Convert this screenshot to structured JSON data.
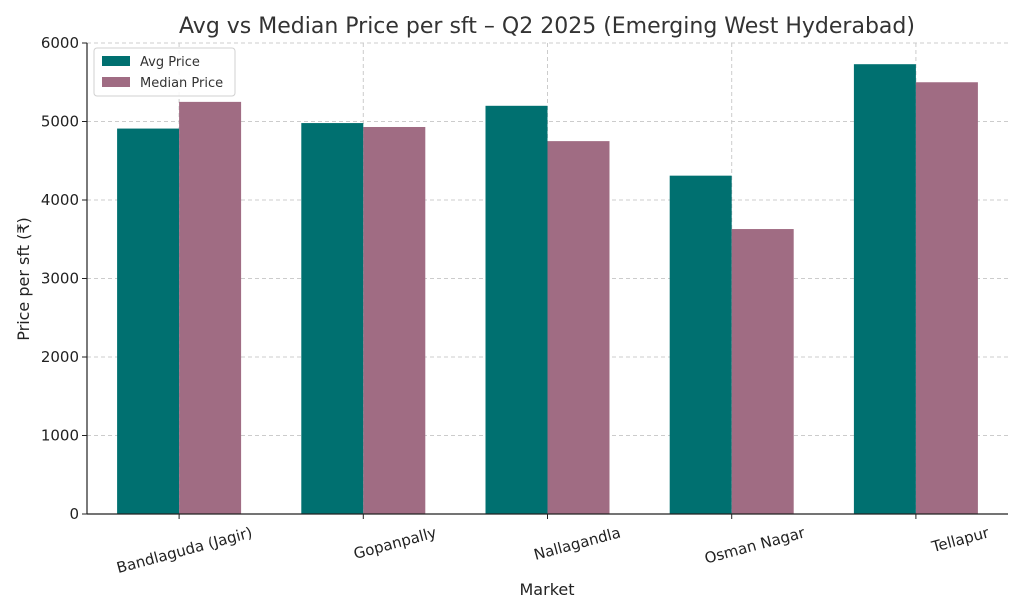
{
  "chart_data": {
    "type": "bar",
    "title": "Avg vs Median Price per sft – Q2 2025 (Emerging West Hyderabad)",
    "xlabel": "Market",
    "ylabel": "Price per sft (₹)",
    "categories": [
      "Bandlaguda (Jagir)",
      "Gopanpally",
      "Nallagandla",
      "Osman Nagar",
      "Tellapur"
    ],
    "series": [
      {
        "name": "Avg Price",
        "color": "#007070",
        "values": [
          4910,
          4980,
          5200,
          4310,
          5730
        ]
      },
      {
        "name": "Median Price",
        "color": "#a06c83",
        "values": [
          5250,
          4930,
          4750,
          3630,
          5500
        ]
      }
    ],
    "ylim": [
      0,
      6000
    ],
    "yticks": [
      0,
      1000,
      2000,
      3000,
      4000,
      5000,
      6000
    ],
    "grid": true,
    "legend": "top-left"
  }
}
